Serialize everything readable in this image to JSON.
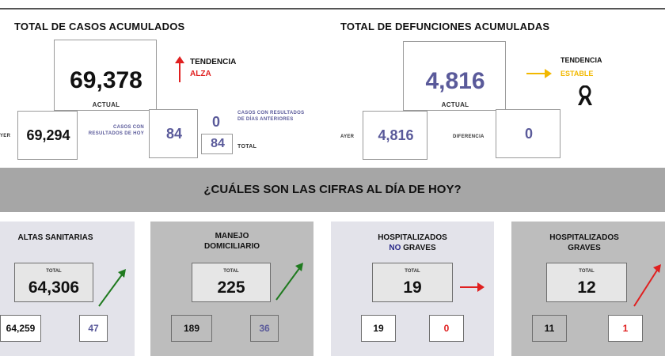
{
  "cases": {
    "title": "TOTAL DE CASOS ACUMULADOS",
    "current_value": "69,378",
    "current_label": "ACTUAL",
    "trend_label": "TENDENCIA",
    "trend_value": "ALZA",
    "yesterday_label": "YER",
    "yesterday_value": "69,294",
    "today_results_label": "CASOS CON RESULTADOS DE HOY",
    "today_results_value": "84",
    "previous_days_value": "0",
    "previous_days_label": "CASOS CON RESULTADOS DE DÍAS ANTERIORES",
    "total_value": "84",
    "total_label": "TOTAL"
  },
  "deaths": {
    "title": "TOTAL DE DEFUNCIONES ACUMULADAS",
    "current_value": "4,816",
    "current_label": "ACTUAL",
    "trend_label": "TENDENCIA",
    "trend_value": "ESTABLE",
    "yesterday_label": "AYER",
    "yesterday_value": "4,816",
    "difference_label": "DIFERENCIA",
    "difference_value": "0"
  },
  "banner": {
    "text": "¿CUÁLES SON LAS CIFRAS AL DÍA DE HOY?"
  },
  "cards": [
    {
      "title_line1": "ALTAS SANITARIAS",
      "title_line2": "",
      "total_label": "TOTAL",
      "total_value": "64,306",
      "prev_value": "64,259",
      "diff_value": "47"
    },
    {
      "title_line1": "MANEJO",
      "title_line2": "DOMICILIARIO",
      "total_label": "TOTAL",
      "total_value": "225",
      "prev_value": "189",
      "diff_value": "36"
    },
    {
      "title_line1": "HOSPITALIZADOS",
      "title_line2_a": "NO",
      "title_line2_b": " GRAVES",
      "total_label": "TOTAL",
      "total_value": "19",
      "prev_value": "19",
      "diff_value": "0"
    },
    {
      "title_line1": "HOSPITALIZADOS",
      "title_line2": "GRAVES",
      "total_label": "TOTAL",
      "total_value": "12",
      "prev_value": "11",
      "diff_value": "1"
    }
  ],
  "colors": {
    "purple": "#5a5a9a",
    "red": "#e02020",
    "green": "#1f7a1f",
    "yellow": "#f2b800",
    "navy": "#2a2a8a"
  },
  "icons": {
    "up_arrow": "red-up-arrow-icon",
    "right_arrow": "yellow-right-arrow-icon",
    "mourning": "black-ribbon-icon"
  }
}
